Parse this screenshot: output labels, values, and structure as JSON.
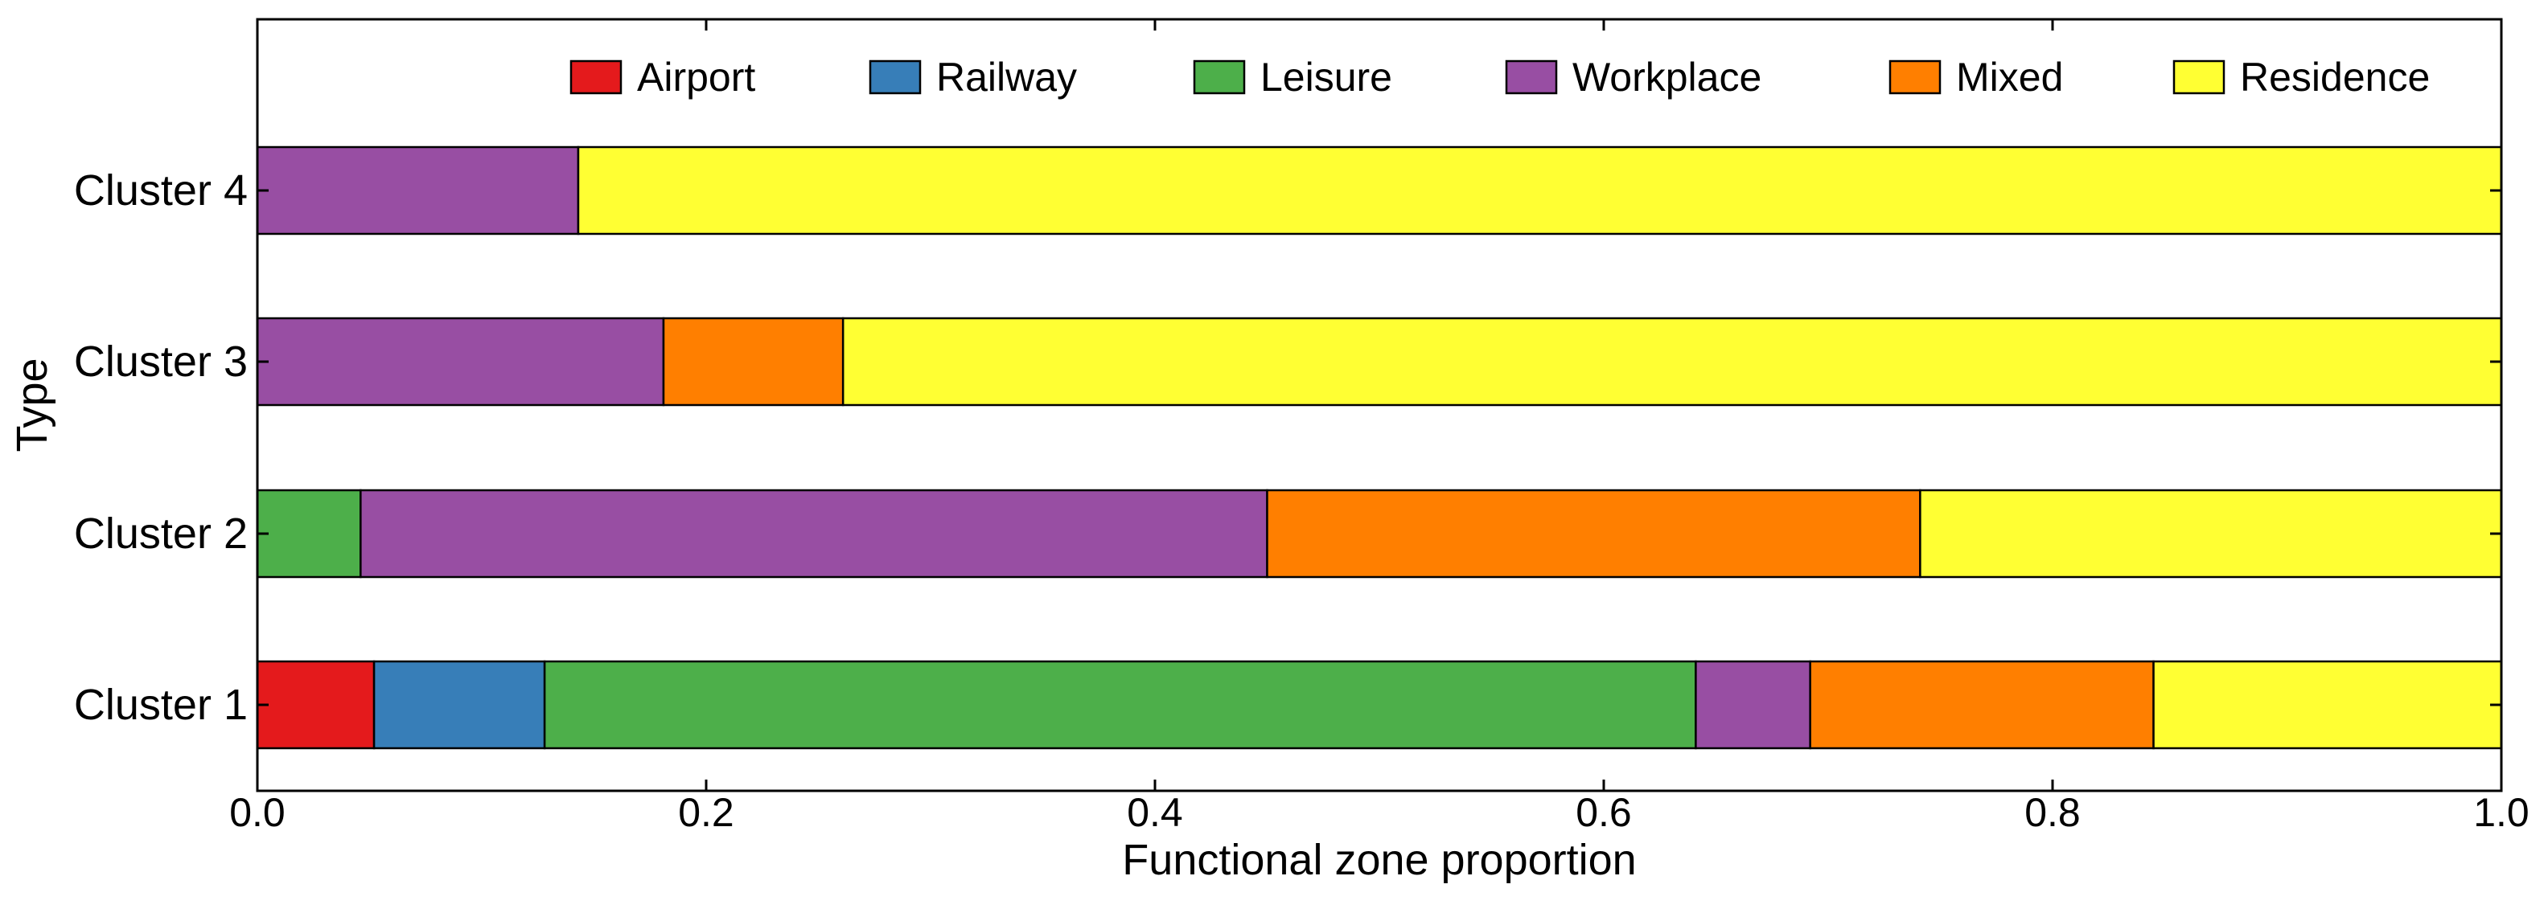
{
  "chart_data": {
    "type": "bar",
    "orientation": "horizontal",
    "stacked": true,
    "xlabel": "Functional zone proportion",
    "ylabel": "Type",
    "xlim": [
      0.0,
      1.0
    ],
    "x_ticks": [
      "0.0",
      "0.2",
      "0.4",
      "0.6",
      "0.8",
      "1.0"
    ],
    "categories": [
      "Cluster 1",
      "Cluster 2",
      "Cluster 3",
      "Cluster 4"
    ],
    "legend_position": "top",
    "grid": false,
    "series": [
      {
        "name": "Airport",
        "color": "#e41a1c",
        "values": [
          0.052,
          0.0,
          0.0,
          0.0
        ]
      },
      {
        "name": "Railway",
        "color": "#377eb8",
        "values": [
          0.076,
          0.0,
          0.0,
          0.0
        ]
      },
      {
        "name": "Leisure",
        "color": "#4daf4a",
        "values": [
          0.513,
          0.046,
          0.0,
          0.0
        ]
      },
      {
        "name": "Workplace",
        "color": "#984ea3",
        "values": [
          0.051,
          0.404,
          0.181,
          0.143
        ]
      },
      {
        "name": "Mixed",
        "color": "#ff7f00",
        "values": [
          0.153,
          0.291,
          0.08,
          0.0
        ]
      },
      {
        "name": "Residence",
        "color": "#ffff33",
        "values": [
          0.155,
          0.259,
          0.739,
          0.857
        ]
      }
    ]
  }
}
